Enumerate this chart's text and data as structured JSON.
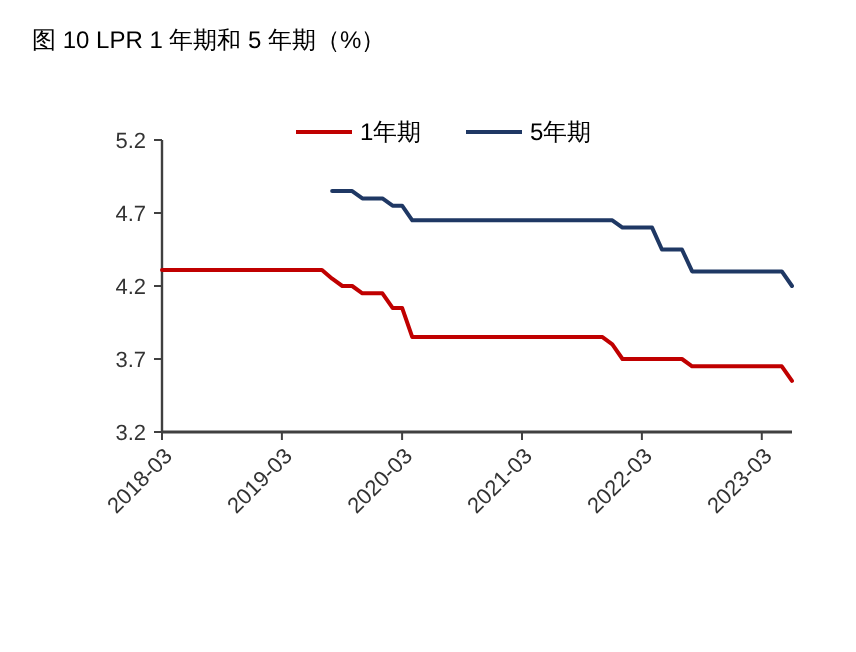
{
  "chart_data": {
    "type": "line",
    "title": "图 10  LPR 1 年期和 5 年期（%）",
    "xlim": [
      "2018-03",
      "2023-06"
    ],
    "xticks": [
      "2018-03",
      "2019-03",
      "2020-03",
      "2021-03",
      "2022-03",
      "2023-03"
    ],
    "ylim": [
      3.2,
      5.2
    ],
    "yticks": [
      3.2,
      3.7,
      4.2,
      4.7,
      5.2
    ],
    "grid": false,
    "legend": "top",
    "marker": "none",
    "line_style": "solid",
    "series": [
      {
        "name": "1年期",
        "color": "#c00000",
        "x": [
          "2018-03",
          "2019-07",
          "2019-08",
          "2019-09",
          "2019-10",
          "2019-11",
          "2020-01",
          "2020-02",
          "2020-03",
          "2020-04",
          "2021-11",
          "2021-12",
          "2022-01",
          "2022-07",
          "2022-08",
          "2023-05",
          "2023-06"
        ],
        "values": [
          4.31,
          4.31,
          4.25,
          4.2,
          4.2,
          4.15,
          4.15,
          4.05,
          4.05,
          3.85,
          3.85,
          3.8,
          3.7,
          3.7,
          3.65,
          3.65,
          3.55
        ]
      },
      {
        "name": "5年期",
        "color": "#1f3864",
        "x": [
          "2019-08",
          "2019-10",
          "2019-11",
          "2020-01",
          "2020-02",
          "2020-03",
          "2020-04",
          "2021-12",
          "2022-01",
          "2022-04",
          "2022-05",
          "2022-07",
          "2022-08",
          "2023-05",
          "2023-06"
        ],
        "values": [
          4.85,
          4.85,
          4.8,
          4.8,
          4.75,
          4.75,
          4.65,
          4.65,
          4.6,
          4.6,
          4.45,
          4.45,
          4.3,
          4.3,
          4.2
        ]
      }
    ]
  }
}
